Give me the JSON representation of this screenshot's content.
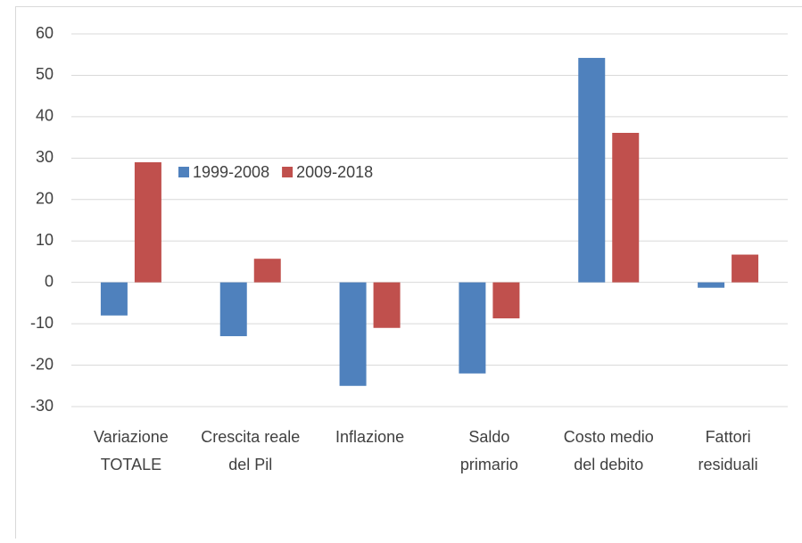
{
  "chart_data": {
    "type": "bar",
    "categories": [
      "Variazione\nTOTALE",
      "Crescita reale\ndel Pil",
      "Inflazione",
      "Saldo\nprimario",
      "Costo medio\ndel debito",
      "Fattori\nresiduali"
    ],
    "series": [
      {
        "name": "1999-2008",
        "color": "#4f81bd",
        "values": [
          -8,
          -13,
          -25,
          -22,
          54.2,
          -1.3
        ]
      },
      {
        "name": "2009-2018",
        "color": "#c0504d",
        "values": [
          29,
          5.7,
          -11,
          -8.7,
          36.1,
          6.7
        ]
      }
    ],
    "ylim": [
      -30,
      60
    ],
    "yticks": [
      -30,
      -20,
      -10,
      0,
      10,
      20,
      30,
      40,
      50,
      60
    ],
    "grid": true
  }
}
